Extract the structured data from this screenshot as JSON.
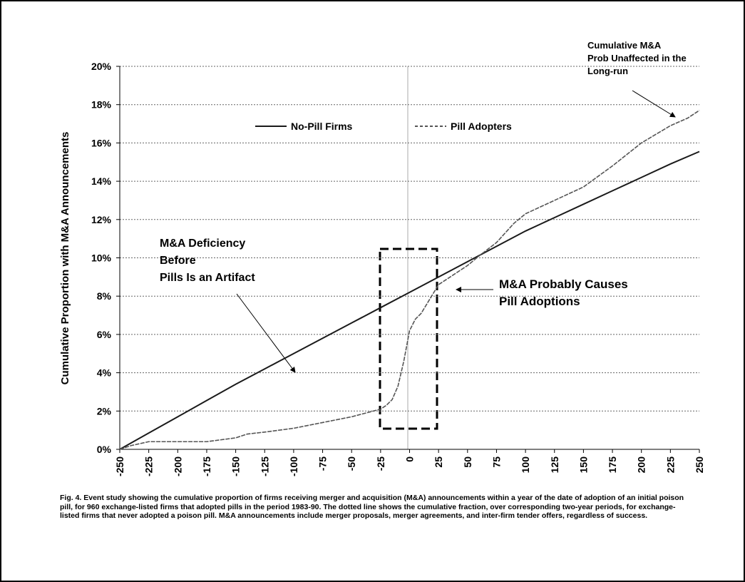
{
  "chart_data": {
    "type": "line",
    "y_label": "Cumulative Proportion with M&A Announcements",
    "xlim": [
      -250,
      250
    ],
    "xticks": [
      -250,
      -225,
      -200,
      -175,
      -150,
      -125,
      -100,
      -75,
      -50,
      -25,
      0,
      25,
      50,
      75,
      100,
      125,
      150,
      175,
      200,
      225,
      250
    ],
    "ylim": [
      0,
      20
    ],
    "yticks": [
      {
        "value": 0,
        "label": "0%"
      },
      {
        "value": 2,
        "label": "2%"
      },
      {
        "value": 4,
        "label": "4%"
      },
      {
        "value": 6,
        "label": "6%"
      },
      {
        "value": 8,
        "label": "8%"
      },
      {
        "value": 10,
        "label": "10%"
      },
      {
        "value": 12,
        "label": "12%"
      },
      {
        "value": 14,
        "label": "14%"
      },
      {
        "value": 16,
        "label": "16%"
      },
      {
        "value": 18,
        "label": "18%"
      },
      {
        "value": 20,
        "label": "20%"
      }
    ],
    "grid": true,
    "series": [
      {
        "name": "No-Pill Firms",
        "color": "#1a1a1a",
        "dashed": false,
        "x": [
          -250,
          -225,
          -200,
          -175,
          -150,
          -125,
          -100,
          -75,
          -50,
          -25,
          0,
          25,
          50,
          75,
          100,
          125,
          150,
          175,
          200,
          225,
          250
        ],
        "values": [
          0,
          0.85,
          1.7,
          2.55,
          3.4,
          4.2,
          5.0,
          5.8,
          6.6,
          7.4,
          8.2,
          9.0,
          9.8,
          10.6,
          11.4,
          12.1,
          12.8,
          13.5,
          14.2,
          14.9,
          15.55
        ]
      },
      {
        "name": "Pill Adopters",
        "color": "#555555",
        "dashed": true,
        "x": [
          -250,
          -240,
          -225,
          -200,
          -175,
          -150,
          -140,
          -125,
          -100,
          -75,
          -50,
          -25,
          -20,
          -15,
          -10,
          -5,
          0,
          5,
          10,
          15,
          20,
          25,
          40,
          50,
          60,
          75,
          90,
          100,
          125,
          150,
          175,
          200,
          225,
          240,
          250
        ],
        "values": [
          0,
          0.2,
          0.4,
          0.4,
          0.4,
          0.6,
          0.8,
          0.9,
          1.1,
          1.4,
          1.7,
          2.1,
          2.3,
          2.6,
          3.3,
          4.6,
          6.2,
          6.8,
          7.1,
          7.6,
          8.1,
          8.6,
          9.2,
          9.6,
          10.1,
          10.8,
          11.8,
          12.3,
          13.0,
          13.7,
          14.8,
          16.0,
          16.9,
          17.3,
          17.7
        ]
      }
    ],
    "annotations": [
      [
        "M&A Deficiency",
        "Before",
        "Pills Is an Artifact"
      ],
      [
        "M&A Probably Causes",
        "Pill Adoptions"
      ],
      [
        "Cumulative M&A",
        "Prob Unaffected in the",
        "Long-run"
      ]
    ],
    "caption": "Fig. 4.   Event study showing the cumulative proportion of firms receiving merger and acquisition (M&A) announcements within a year of the date of adoption of an initial poison pill, for 960 exchange-listed firms that adopted pills in the period 1983-90.  The dotted line shows the cumulative fraction, over corresponding two-year periods, for exchange-listed firms that never adopted a poison pill.  M&A announcements include merger proposals, merger agreements, and inter-firm tender offers, regardless of success."
  }
}
